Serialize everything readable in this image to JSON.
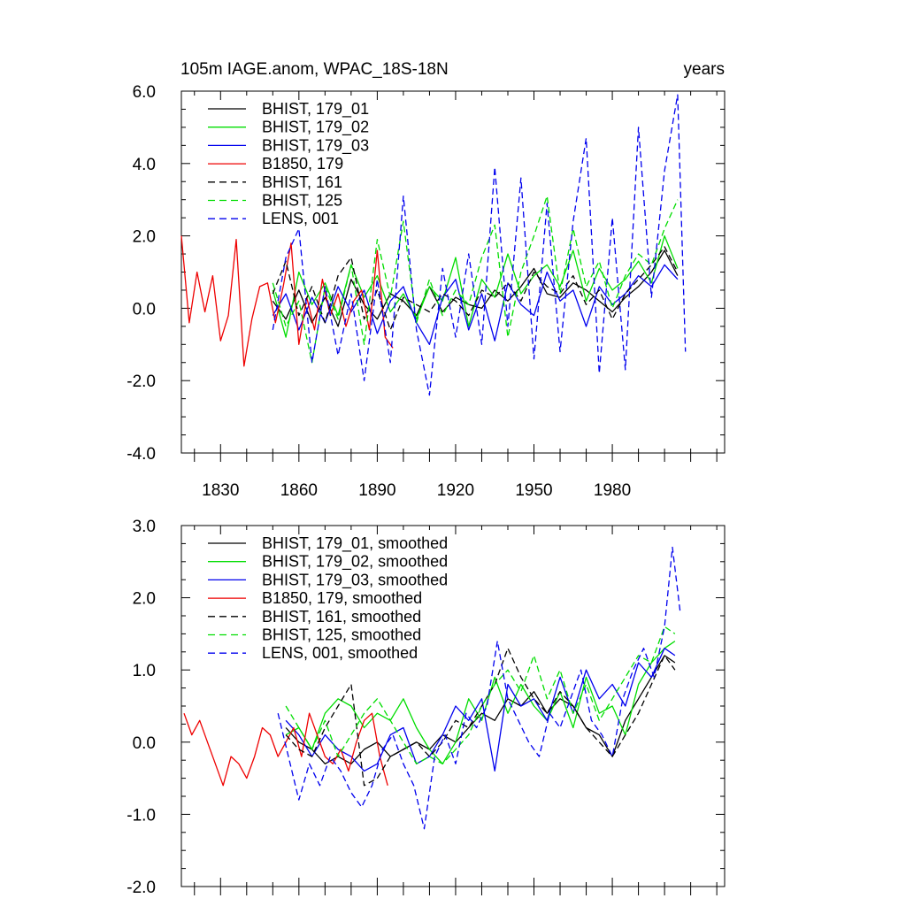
{
  "chart_data": [
    {
      "type": "line",
      "title": "105m IAGE.anom, WPAC_18S-18N",
      "title_right": "years",
      "ylim": [
        -4.0,
        6.0
      ],
      "xlim": [
        1815,
        2023
      ],
      "y_ticks": [
        -4.0,
        -2.0,
        0.0,
        2.0,
        4.0,
        6.0
      ],
      "y_tick_labels": [
        "-4.0",
        "-2.0",
        "0.0",
        "2.0",
        "4.0",
        "6.0"
      ],
      "x_ticks": [
        1830,
        1860,
        1890,
        1920,
        1950,
        1980
      ],
      "x_tick_labels": [
        "1830",
        "1860",
        "1890",
        "1920",
        "1950",
        "1980"
      ],
      "legend_position": "top-left",
      "series": [
        {
          "name": "BHIST, 179_01",
          "color": "#000000",
          "dash": "solid",
          "x": [
            1850,
            1855,
            1860,
            1865,
            1870,
            1875,
            1880,
            1885,
            1890,
            1895,
            1900,
            1905,
            1910,
            1915,
            1920,
            1925,
            1930,
            1935,
            1940,
            1945,
            1950,
            1955,
            1960,
            1965,
            1970,
            1975,
            1980,
            1985,
            1990,
            1995,
            2000,
            2005
          ],
          "values": [
            0.2,
            -0.3,
            0.5,
            -0.4,
            0.3,
            -0.5,
            0.8,
            0.1,
            -0.3,
            0.4,
            0.2,
            -0.2,
            0.6,
            -0.1,
            0.3,
            0.1,
            0.0,
            0.5,
            0.2,
            0.6,
            1.1,
            0.4,
            0.3,
            0.7,
            0.5,
            0.2,
            -0.1,
            0.3,
            0.6,
            1.0,
            1.6,
            0.9
          ]
        },
        {
          "name": "BHIST, 179_02",
          "color": "#00dd00",
          "dash": "solid",
          "x": [
            1850,
            1855,
            1860,
            1865,
            1870,
            1875,
            1880,
            1885,
            1890,
            1895,
            1900,
            1905,
            1910,
            1915,
            1920,
            1925,
            1930,
            1935,
            1940,
            1945,
            1950,
            1955,
            1960,
            1965,
            1970,
            1975,
            1980,
            1985,
            1990,
            1995,
            2000,
            2005
          ],
          "values": [
            0.5,
            -0.8,
            1.0,
            0.1,
            0.7,
            -0.2,
            1.2,
            0.3,
            0.9,
            -0.1,
            0.4,
            -0.3,
            0.6,
            0.2,
            1.4,
            -0.5,
            0.8,
            0.3,
            1.5,
            0.4,
            0.9,
            1.2,
            0.6,
            1.6,
            0.2,
            1.1,
            0.5,
            0.8,
            1.3,
            0.7,
            2.0,
            1.1
          ]
        },
        {
          "name": "BHIST, 179_03",
          "color": "#0000ee",
          "dash": "solid",
          "x": [
            1850,
            1855,
            1860,
            1865,
            1870,
            1875,
            1880,
            1885,
            1890,
            1895,
            1900,
            1905,
            1910,
            1915,
            1920,
            1925,
            1930,
            1935,
            1940,
            1945,
            1950,
            1955,
            1960,
            1965,
            1970,
            1975,
            1980,
            1985,
            1990,
            1995,
            2000,
            2005
          ],
          "values": [
            -0.2,
            0.4,
            -0.6,
            0.3,
            -0.4,
            0.6,
            -0.1,
            0.5,
            -0.7,
            0.2,
            0.6,
            -0.4,
            -1.0,
            0.3,
            0.8,
            -0.6,
            0.4,
            -0.9,
            0.7,
            0.1,
            -0.2,
            1.0,
            0.2,
            0.5,
            -0.5,
            0.6,
            0.1,
            0.4,
            0.9,
            0.6,
            1.2,
            0.8
          ]
        },
        {
          "name": "B1850, 179",
          "color": "#ee0000",
          "dash": "solid",
          "x": [
            1815,
            1818,
            1821,
            1824,
            1827,
            1830,
            1833,
            1836,
            1839,
            1842,
            1845,
            1848,
            1851,
            1854,
            1857,
            1860,
            1863,
            1866,
            1869,
            1872,
            1875,
            1878,
            1881,
            1884,
            1887,
            1890,
            1893,
            1896
          ],
          "values": [
            2.0,
            -0.4,
            1.0,
            -0.1,
            0.9,
            -0.9,
            -0.2,
            1.9,
            -1.6,
            -0.3,
            0.6,
            0.7,
            -0.4,
            0.6,
            1.8,
            -1.0,
            0.3,
            -0.6,
            0.8,
            -0.2,
            0.4,
            -0.5,
            0.2,
            0.5,
            -0.6,
            1.6,
            -0.8,
            -1.1
          ]
        },
        {
          "name": "BHIST, 161",
          "color": "#000000",
          "dash": "dashed",
          "x": [
            1850,
            1855,
            1860,
            1865,
            1870,
            1875,
            1880,
            1885,
            1890,
            1895,
            1900,
            1905,
            1910,
            1915,
            1920,
            1925,
            1930,
            1935,
            1940,
            1945,
            1950,
            1955,
            1960,
            1965,
            1970,
            1975,
            1980,
            1985,
            1990,
            1995,
            2000,
            2005
          ],
          "values": [
            0.4,
            1.3,
            -0.2,
            0.6,
            -0.4,
            0.9,
            1.4,
            -0.3,
            0.5,
            -0.6,
            0.3,
            0.1,
            -0.1,
            0.4,
            0.2,
            -0.2,
            0.5,
            0.3,
            0.7,
            0.2,
            1.0,
            0.6,
            0.4,
            0.9,
            0.1,
            0.5,
            -0.3,
            0.4,
            0.8,
            1.2,
            1.7,
            1.0
          ]
        },
        {
          "name": "BHIST, 125",
          "color": "#00dd00",
          "dash": "dashed",
          "x": [
            1850,
            1855,
            1860,
            1865,
            1870,
            1875,
            1880,
            1885,
            1890,
            1895,
            1900,
            1905,
            1910,
            1915,
            1920,
            1925,
            1930,
            1935,
            1940,
            1945,
            1950,
            1955,
            1960,
            1965,
            1970,
            1975,
            1980,
            1985,
            1990,
            1995,
            2000,
            2005
          ],
          "values": [
            0.7,
            -0.5,
            0.2,
            -1.5,
            0.6,
            -0.3,
            1.2,
            -1.0,
            1.9,
            0.3,
            2.4,
            -0.4,
            0.8,
            -0.2,
            0.5,
            0.1,
            1.4,
            2.3,
            -0.8,
            1.0,
            2.0,
            3.1,
            0.4,
            2.2,
            0.6,
            1.3,
            0.0,
            0.9,
            1.5,
            1.2,
            2.2,
            3.0
          ]
        },
        {
          "name": "LENS, 001",
          "color": "#0000ee",
          "dash": "dashed",
          "x": [
            1850,
            1855,
            1860,
            1865,
            1870,
            1875,
            1880,
            1885,
            1890,
            1895,
            1900,
            1905,
            1910,
            1915,
            1920,
            1925,
            1930,
            1935,
            1940,
            1945,
            1950,
            1955,
            1960,
            1965,
            1970,
            1975,
            1980,
            1985,
            1990,
            1995,
            2000,
            2005,
            2008
          ],
          "values": [
            -0.6,
            1.4,
            2.2,
            -1.5,
            0.6,
            -1.3,
            0.4,
            -2.0,
            0.8,
            -1.5,
            3.1,
            -0.6,
            -2.4,
            1.1,
            -0.8,
            1.5,
            -1.0,
            3.9,
            -0.5,
            3.6,
            -1.4,
            2.9,
            -1.2,
            2.4,
            4.7,
            -1.8,
            2.5,
            -1.7,
            5.0,
            0.3,
            3.8,
            5.9,
            -1.2
          ]
        }
      ]
    },
    {
      "type": "line",
      "ylim": [
        -2.0,
        3.0
      ],
      "xlim": [
        1815,
        2023
      ],
      "y_ticks": [
        -2.0,
        -1.0,
        0.0,
        1.0,
        2.0,
        3.0
      ],
      "y_tick_labels": [
        "-2.0",
        "-1.0",
        "0.0",
        "1.0",
        "2.0",
        "3.0"
      ],
      "x_ticks": [
        1830,
        1860,
        1890,
        1920,
        1950,
        1980
      ],
      "legend_position": "top-left",
      "series": [
        {
          "name": "BHIST, 179_01, smoothed",
          "color": "#000000",
          "dash": "solid",
          "x": [
            1855,
            1860,
            1865,
            1870,
            1875,
            1880,
            1885,
            1890,
            1895,
            1900,
            1905,
            1910,
            1915,
            1920,
            1925,
            1930,
            1935,
            1940,
            1945,
            1950,
            1955,
            1960,
            1965,
            1970,
            1975,
            1980,
            1985,
            1990,
            1995,
            2000,
            2004
          ],
          "values": [
            0.2,
            0.0,
            -0.1,
            -0.3,
            -0.2,
            -0.3,
            -0.1,
            0.0,
            -0.2,
            -0.1,
            0.0,
            -0.1,
            0.1,
            0.0,
            0.2,
            0.4,
            0.3,
            0.6,
            0.5,
            0.7,
            0.4,
            0.6,
            0.5,
            0.2,
            0.1,
            -0.2,
            0.3,
            0.6,
            0.9,
            1.2,
            1.1
          ]
        },
        {
          "name": "BHIST, 179_02, smoothed",
          "color": "#00dd00",
          "dash": "solid",
          "x": [
            1855,
            1860,
            1865,
            1870,
            1875,
            1880,
            1885,
            1890,
            1895,
            1900,
            1905,
            1910,
            1915,
            1920,
            1925,
            1930,
            1935,
            1940,
            1945,
            1950,
            1955,
            1960,
            1965,
            1970,
            1975,
            1980,
            1985,
            1990,
            1995,
            2000,
            2004
          ],
          "values": [
            0.1,
            0.2,
            -0.1,
            0.4,
            0.6,
            0.5,
            0.2,
            0.4,
            0.3,
            0.6,
            0.2,
            -0.1,
            -0.3,
            0.0,
            0.6,
            0.3,
            0.9,
            0.4,
            0.8,
            0.5,
            0.3,
            0.7,
            0.2,
            0.9,
            0.4,
            0.5,
            0.1,
            0.8,
            1.1,
            1.3,
            1.4
          ]
        },
        {
          "name": "BHIST, 179_03, smoothed",
          "color": "#0000ee",
          "dash": "solid",
          "x": [
            1855,
            1860,
            1865,
            1870,
            1875,
            1880,
            1885,
            1890,
            1895,
            1900,
            1905,
            1910,
            1915,
            1920,
            1925,
            1930,
            1935,
            1940,
            1945,
            1950,
            1955,
            1960,
            1965,
            1970,
            1975,
            1980,
            1985,
            1990,
            1995,
            2000,
            2004
          ],
          "values": [
            0.3,
            0.1,
            -0.2,
            0.1,
            -0.1,
            -0.2,
            -0.4,
            -0.3,
            0.1,
            0.2,
            -0.3,
            -0.2,
            0.1,
            0.5,
            0.3,
            0.6,
            -0.4,
            0.8,
            0.5,
            0.6,
            0.3,
            0.9,
            0.4,
            1.0,
            0.6,
            0.8,
            0.5,
            1.1,
            0.9,
            1.3,
            1.2
          ]
        },
        {
          "name": "B1850, 179, smoothed",
          "color": "#ee0000",
          "dash": "solid",
          "x": [
            1816,
            1819,
            1822,
            1825,
            1828,
            1831,
            1834,
            1837,
            1840,
            1843,
            1846,
            1849,
            1852,
            1855,
            1858,
            1861,
            1864,
            1867,
            1870,
            1873,
            1876,
            1879,
            1882,
            1885,
            1888,
            1891,
            1894
          ],
          "values": [
            0.4,
            0.1,
            0.3,
            0.0,
            -0.3,
            -0.6,
            -0.2,
            -0.3,
            -0.5,
            -0.2,
            0.2,
            0.1,
            -0.2,
            0.0,
            0.2,
            -0.2,
            0.4,
            0.1,
            -0.2,
            -0.3,
            -0.1,
            -0.4,
            0.0,
            0.3,
            0.4,
            -0.2,
            -0.6
          ]
        },
        {
          "name": "BHIST, 161, smoothed",
          "color": "#000000",
          "dash": "dashed",
          "x": [
            1855,
            1860,
            1865,
            1870,
            1875,
            1880,
            1885,
            1890,
            1895,
            1900,
            1905,
            1910,
            1915,
            1920,
            1925,
            1930,
            1935,
            1940,
            1945,
            1950,
            1955,
            1960,
            1965,
            1970,
            1975,
            1980,
            1985,
            1990,
            1995,
            2000,
            2004
          ],
          "values": [
            0.1,
            -0.1,
            -0.2,
            0.2,
            0.5,
            0.8,
            -0.6,
            -0.5,
            -0.2,
            -0.1,
            0.0,
            -0.2,
            0.0,
            0.3,
            0.2,
            0.5,
            0.8,
            1.3,
            0.9,
            0.6,
            0.4,
            0.7,
            0.5,
            0.2,
            0.0,
            -0.2,
            0.1,
            0.4,
            0.8,
            1.2,
            1.0
          ]
        },
        {
          "name": "BHIST, 125, smoothed",
          "color": "#00dd00",
          "dash": "dashed",
          "x": [
            1855,
            1860,
            1865,
            1870,
            1875,
            1880,
            1885,
            1890,
            1895,
            1900,
            1905,
            1910,
            1915,
            1920,
            1925,
            1930,
            1935,
            1940,
            1945,
            1950,
            1955,
            1960,
            1965,
            1970,
            1975,
            1980,
            1985,
            1990,
            1995,
            2000,
            2004
          ],
          "values": [
            0.5,
            0.2,
            -0.1,
            0.3,
            -0.2,
            0.1,
            0.4,
            0.6,
            0.3,
            0.0,
            -0.3,
            -0.2,
            -0.3,
            -0.1,
            0.1,
            0.5,
            0.8,
            1.0,
            0.7,
            1.2,
            0.6,
            1.0,
            0.4,
            0.8,
            0.3,
            0.6,
            0.9,
            1.2,
            1.1,
            1.6,
            1.5
          ]
        },
        {
          "name": "LENS, 001, smoothed",
          "color": "#0000ee",
          "dash": "dashed",
          "x": [
            1852,
            1856,
            1860,
            1864,
            1868,
            1872,
            1876,
            1880,
            1884,
            1888,
            1892,
            1896,
            1900,
            1904,
            1908,
            1912,
            1916,
            1920,
            1924,
            1928,
            1932,
            1936,
            1940,
            1944,
            1948,
            1952,
            1956,
            1960,
            1964,
            1968,
            1972,
            1976,
            1980,
            1984,
            1988,
            1992,
            1996,
            2000,
            2003,
            2006
          ],
          "values": [
            0.4,
            -0.2,
            -0.8,
            -0.3,
            -0.6,
            -0.2,
            -0.4,
            -0.7,
            -0.9,
            -0.6,
            -0.1,
            0.1,
            -0.3,
            -0.6,
            -1.2,
            -0.2,
            0.1,
            -0.3,
            0.4,
            0.2,
            0.5,
            1.4,
            0.6,
            0.3,
            0.0,
            -0.2,
            0.4,
            0.2,
            0.6,
            1.0,
            0.3,
            0.1,
            -0.2,
            0.6,
            1.0,
            1.3,
            0.9,
            1.6,
            2.7,
            1.8
          ]
        }
      ]
    }
  ]
}
